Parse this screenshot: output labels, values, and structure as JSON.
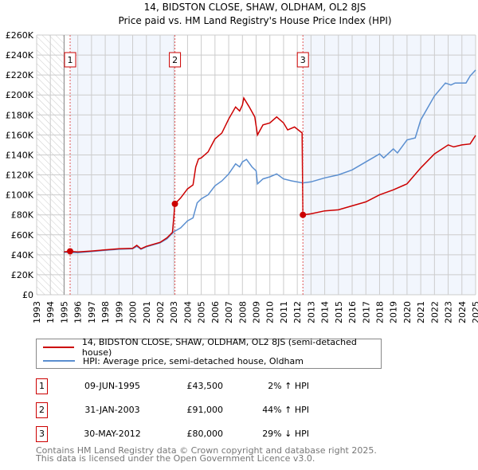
{
  "chart_data": {
    "type": "line",
    "title": "14, BIDSTON CLOSE, SHAW, OLDHAM, OL2 8JS",
    "subtitle": "Price paid vs. HM Land Registry's House Price Index (HPI)",
    "xlim": [
      1993,
      2025
    ],
    "ylim": [
      0,
      260000
    ],
    "x_ticks": [
      "1993",
      "1994",
      "1995",
      "1996",
      "1997",
      "1998",
      "1999",
      "2000",
      "2001",
      "2002",
      "2003",
      "2004",
      "2005",
      "2006",
      "2007",
      "2008",
      "2009",
      "2010",
      "2011",
      "2012",
      "2013",
      "2014",
      "2015",
      "2016",
      "2017",
      "2018",
      "2019",
      "2020",
      "2021",
      "2022",
      "2023",
      "2024",
      "2025"
    ],
    "y_ticks": [
      {
        "v": 0,
        "label": "£0"
      },
      {
        "v": 20000,
        "label": "£20K"
      },
      {
        "v": 40000,
        "label": "£40K"
      },
      {
        "v": 60000,
        "label": "£60K"
      },
      {
        "v": 80000,
        "label": "£80K"
      },
      {
        "v": 100000,
        "label": "£100K"
      },
      {
        "v": 120000,
        "label": "£120K"
      },
      {
        "v": 140000,
        "label": "£140K"
      },
      {
        "v": 160000,
        "label": "£160K"
      },
      {
        "v": 180000,
        "label": "£180K"
      },
      {
        "v": 200000,
        "label": "£200K"
      },
      {
        "v": 220000,
        "label": "£220K"
      },
      {
        "v": 240000,
        "label": "£240K"
      },
      {
        "v": 260000,
        "label": "£260K"
      }
    ],
    "grid": true,
    "series": [
      {
        "name": "14, BIDSTON CLOSE, SHAW, OLDHAM, OL2 8JS (semi-detached house)",
        "color": "#cc0000",
        "points": [
          [
            1995.0,
            43000
          ],
          [
            1995.44,
            43500
          ],
          [
            1996,
            42800
          ],
          [
            1997,
            43800
          ],
          [
            1998,
            45000
          ],
          [
            1999,
            46000
          ],
          [
            2000,
            46500
          ],
          [
            2000.3,
            49500
          ],
          [
            2000.6,
            46000
          ],
          [
            2001,
            48500
          ],
          [
            2002,
            52500
          ],
          [
            2002.5,
            57000
          ],
          [
            2002.9,
            62500
          ],
          [
            2003.08,
            91000
          ],
          [
            2003.5,
            97000
          ],
          [
            2004,
            106000
          ],
          [
            2004.4,
            110000
          ],
          [
            2004.6,
            128000
          ],
          [
            2004.8,
            136000
          ],
          [
            2005,
            137000
          ],
          [
            2005.5,
            143000
          ],
          [
            2006,
            156000
          ],
          [
            2006.5,
            162000
          ],
          [
            2007,
            176000
          ],
          [
            2007.5,
            188000
          ],
          [
            2007.8,
            184000
          ],
          [
            2008,
            190000
          ],
          [
            2008.1,
            197000
          ],
          [
            2008.5,
            188000
          ],
          [
            2008.9,
            178000
          ],
          [
            2009.1,
            160000
          ],
          [
            2009.5,
            170000
          ],
          [
            2010,
            172000
          ],
          [
            2010.5,
            178000
          ],
          [
            2011,
            172000
          ],
          [
            2011.3,
            165000
          ],
          [
            2011.8,
            168000
          ],
          [
            2012.35,
            162000
          ],
          [
            2012.41,
            80000
          ],
          [
            2013,
            81000
          ],
          [
            2014,
            84000
          ],
          [
            2015,
            85000
          ],
          [
            2016,
            89000
          ],
          [
            2017,
            93000
          ],
          [
            2018,
            100000
          ],
          [
            2019,
            105000
          ],
          [
            2020,
            111000
          ],
          [
            2021,
            127000
          ],
          [
            2022,
            141000
          ],
          [
            2023,
            150000
          ],
          [
            2023.4,
            148000
          ],
          [
            2024,
            150000
          ],
          [
            2024.6,
            151000
          ],
          [
            2025,
            159500
          ]
        ]
      },
      {
        "name": "HPI: Average price, semi-detached house, Oldham",
        "color": "#5b8fd0",
        "points": [
          [
            1995.0,
            42500
          ],
          [
            1996,
            42000
          ],
          [
            1997,
            43200
          ],
          [
            1998,
            44500
          ],
          [
            1999,
            45500
          ],
          [
            2000,
            46000
          ],
          [
            2000.3,
            48500
          ],
          [
            2000.6,
            45500
          ],
          [
            2001,
            48000
          ],
          [
            2002,
            52000
          ],
          [
            2002.5,
            56000
          ],
          [
            2003,
            63000
          ],
          [
            2003.5,
            67000
          ],
          [
            2004,
            74000
          ],
          [
            2004.4,
            77000
          ],
          [
            2004.7,
            92000
          ],
          [
            2005,
            96000
          ],
          [
            2005.5,
            100000
          ],
          [
            2006,
            109000
          ],
          [
            2006.5,
            114000
          ],
          [
            2007,
            121000
          ],
          [
            2007.5,
            131000
          ],
          [
            2007.8,
            128000
          ],
          [
            2008,
            133000
          ],
          [
            2008.3,
            135500
          ],
          [
            2008.7,
            128000
          ],
          [
            2009,
            124000
          ],
          [
            2009.1,
            111000
          ],
          [
            2009.5,
            116000
          ],
          [
            2010,
            118000
          ],
          [
            2010.5,
            121000
          ],
          [
            2011,
            116000
          ],
          [
            2011.6,
            114000
          ],
          [
            2012.4,
            112000
          ],
          [
            2013,
            113000
          ],
          [
            2014,
            117000
          ],
          [
            2015,
            120000
          ],
          [
            2016,
            125000
          ],
          [
            2017,
            133000
          ],
          [
            2018,
            141000
          ],
          [
            2018.3,
            137000
          ],
          [
            2019,
            146000
          ],
          [
            2019.3,
            142000
          ],
          [
            2020,
            155000
          ],
          [
            2020.6,
            157000
          ],
          [
            2021,
            175000
          ],
          [
            2022,
            199000
          ],
          [
            2022.8,
            212000
          ],
          [
            2023.2,
            210000
          ],
          [
            2023.5,
            212000
          ],
          [
            2024.3,
            212000
          ],
          [
            2024.6,
            219000
          ],
          [
            2025,
            225000
          ]
        ]
      }
    ],
    "sales": [
      {
        "id": "1",
        "year": 1995.44,
        "price": 43500
      },
      {
        "id": "2",
        "year": 2003.08,
        "price": 91000
      },
      {
        "id": "3",
        "year": 2012.41,
        "price": 80000
      }
    ],
    "legend_placement": "below"
  },
  "legend": {
    "property": "14, BIDSTON CLOSE, SHAW, OLDHAM, OL2 8JS (semi-detached house)",
    "hpi": "HPI: Average price, semi-detached house, Oldham"
  },
  "transactions": [
    {
      "id": "1",
      "date": "09-JUN-1995",
      "price": "£43,500",
      "hpi": "2% ↑ HPI"
    },
    {
      "id": "2",
      "date": "31-JAN-2003",
      "price": "£91,000",
      "hpi": "44% ↑ HPI"
    },
    {
      "id": "3",
      "date": "30-MAY-2012",
      "price": "£80,000",
      "hpi": "29% ↓ HPI"
    }
  ],
  "footer": {
    "line1": "Contains HM Land Registry data © Crown copyright and database right 2025.",
    "line2": "This data is licensed under the Open Government Licence v3.0."
  }
}
